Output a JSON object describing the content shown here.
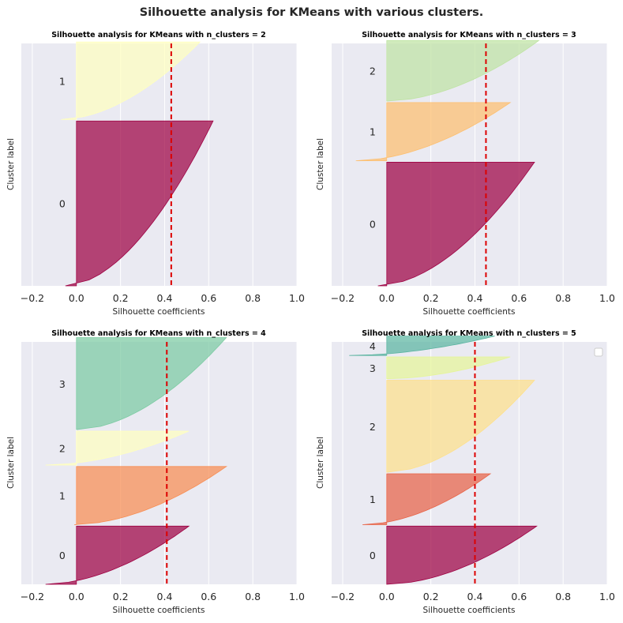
{
  "suptitle": "Silhouette analysis for KMeans with various clusters.",
  "colors": {
    "avg_line": "#dd0000",
    "background": "#eaeaf2",
    "grid": "#ffffff",
    "k2": [
      "#9e0142",
      "#ffffbf"
    ],
    "k3": [
      "#9e0142",
      "#fdbf6f",
      "#bfe3a3"
    ],
    "k4": [
      "#9e0142",
      "#f88d52",
      "#ffffbf",
      "#7ccba2"
    ],
    "k5": [
      "#9e0142",
      "#e86346",
      "#fee08b",
      "#e6f598",
      "#5cb5a1"
    ]
  },
  "chart_data": [
    {
      "type": "area",
      "title": "Silhouette analysis for KMeans with n_clusters = 2",
      "xlabel": "Silhouette coefficients",
      "ylabel": "Cluster label",
      "xlim": [
        -0.25,
        1.0
      ],
      "xticks": [
        "−0.2",
        "0.0",
        "0.2",
        "0.4",
        "0.6",
        "0.8",
        "1.0"
      ],
      "grid": true,
      "avg_silhouette": 0.43,
      "clusters": [
        {
          "label": "0",
          "min": -0.05,
          "max": 0.62,
          "size": 0.68
        },
        {
          "label": "1",
          "min": -0.07,
          "max": 0.56,
          "size": 0.32
        }
      ]
    },
    {
      "type": "area",
      "title": "Silhouette analysis for KMeans with n_clusters = 3",
      "xlabel": "Silhouette coefficients",
      "ylabel": "Cluster label",
      "xlim": [
        -0.25,
        1.0
      ],
      "xticks": [
        "−0.2",
        "0.0",
        "0.2",
        "0.4",
        "0.6",
        "0.8",
        "1.0"
      ],
      "grid": true,
      "avg_silhouette": 0.45,
      "clusters": [
        {
          "label": "0",
          "min": -0.04,
          "max": 0.67,
          "size": 0.51
        },
        {
          "label": "1",
          "min": -0.14,
          "max": 0.56,
          "size": 0.24
        },
        {
          "label": "2",
          "min": 0.0,
          "max": 0.69,
          "size": 0.25
        }
      ]
    },
    {
      "type": "area",
      "title": "Silhouette analysis for KMeans with n_clusters = 4",
      "xlabel": "Silhouette coefficients",
      "ylabel": "Cluster label",
      "xlim": [
        -0.25,
        1.0
      ],
      "xticks": [
        "−0.2",
        "0.0",
        "0.2",
        "0.4",
        "0.6",
        "0.8",
        "1.0"
      ],
      "grid": true,
      "avg_silhouette": 0.41,
      "clusters": [
        {
          "label": "0",
          "min": -0.14,
          "max": 0.51,
          "size": 0.24
        },
        {
          "label": "1",
          "min": -0.01,
          "max": 0.68,
          "size": 0.24
        },
        {
          "label": "2",
          "min": -0.14,
          "max": 0.51,
          "size": 0.14
        },
        {
          "label": "3",
          "min": 0.0,
          "max": 0.68,
          "size": 0.38
        }
      ]
    },
    {
      "type": "area",
      "title": "Silhouette analysis for KMeans with n_clusters = 5",
      "xlabel": "Silhouette coefficients",
      "ylabel": "Cluster label",
      "xlim": [
        -0.25,
        1.0
      ],
      "xticks": [
        "−0.2",
        "0.0",
        "0.2",
        "0.4",
        "0.6",
        "0.8",
        "1.0"
      ],
      "grid": true,
      "legend": "top-right",
      "avg_silhouette": 0.4,
      "clusters": [
        {
          "label": "0",
          "min": 0.0,
          "max": 0.68,
          "size": 0.24
        },
        {
          "label": "1",
          "min": -0.11,
          "max": 0.47,
          "size": 0.21
        },
        {
          "label": "2",
          "min": 0.0,
          "max": 0.67,
          "size": 0.38
        },
        {
          "label": "3",
          "min": 0.0,
          "max": 0.56,
          "size": 0.09
        },
        {
          "label": "4",
          "min": -0.17,
          "max": 0.49,
          "size": 0.08
        }
      ]
    }
  ]
}
